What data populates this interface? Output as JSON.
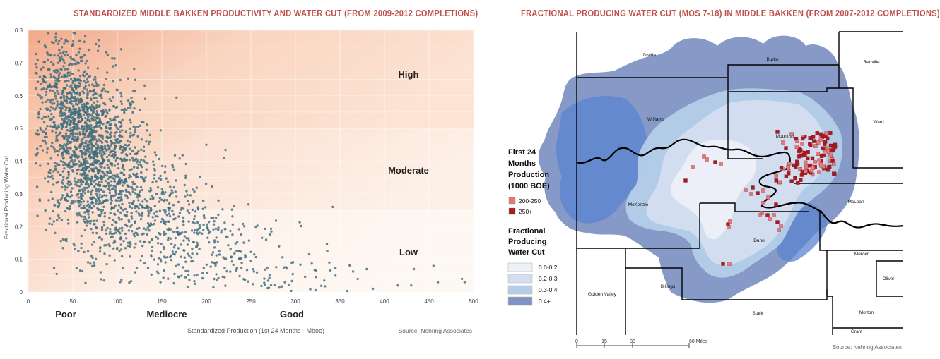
{
  "left_title": "STANDARDIZED MIDDLE BAKKEN PRODUCTIVITY AND WATER CUT (FROM 2009-2012 COMPLETIONS)",
  "right_title": "FRACTIONAL PRODUCING WATER CUT (MOS 7-18) IN MIDDLE BAKKEN (FROM 2007-2012 COMPLETIONS)",
  "chart_data": [
    {
      "type": "scatter",
      "title": "STANDARDIZED MIDDLE BAKKEN PRODUCTIVITY AND WATER CUT (FROM 2009-2012 COMPLETIONS)",
      "xlabel": "Standardized Production (1st 24 Months - Mboe)",
      "ylabel": "Fractional Producing Water Cut",
      "xlim": [
        0,
        500
      ],
      "ylim": [
        0,
        0.8
      ],
      "xticks": [
        "0",
        "50",
        "100",
        "150",
        "200",
        "250",
        "300",
        "350",
        "400",
        "450",
        "500"
      ],
      "yticks": [
        "0",
        "0.1",
        "0.2",
        "0.3",
        "0.4",
        "0.5",
        "0.6",
        "0.7",
        "0.8"
      ],
      "grid": true,
      "zones": [
        {
          "label": "High",
          "y_range": [
            0.5,
            0.8
          ]
        },
        {
          "label": "Moderate",
          "y_range": [
            0.25,
            0.5
          ]
        },
        {
          "label": "Low",
          "y_range": [
            0,
            0.25
          ]
        }
      ],
      "productivity_labels": [
        "Poor",
        "Mediocre",
        "Good"
      ],
      "source": "Source:  Nehring Associates",
      "series": [
        {
          "color": "#3d6e7f",
          "clusters": [
            {
              "x_center": 70,
              "y_center": 0.42,
              "x_spread": 30,
              "y_spread": 0.14,
              "count": 1500
            },
            {
              "x_center": 40,
              "y_center": 0.6,
              "x_spread": 18,
              "y_spread": 0.1,
              "count": 320
            },
            {
              "x_center": 150,
              "y_center": 0.22,
              "x_spread": 45,
              "y_spread": 0.11,
              "count": 480
            },
            {
              "x_center": 260,
              "y_center": 0.1,
              "x_spread": 70,
              "y_spread": 0.07,
              "count": 170
            }
          ],
          "points": [
            [
              487,
              0.04
            ],
            [
              490,
              0.03
            ],
            [
              455,
              0.08
            ],
            [
              460,
              0.03
            ],
            [
              433,
              0.07
            ],
            [
              430,
              0.02
            ],
            [
              415,
              0.02
            ],
            [
              387,
              0.01
            ],
            [
              380,
              0.07
            ],
            [
              342,
              0.26
            ],
            [
              220,
              0.41
            ],
            [
              200,
              0.45
            ],
            [
              338,
              0.09
            ],
            [
              345,
              0.05
            ],
            [
              370,
              0.04
            ]
          ]
        }
      ]
    },
    {
      "type": "map",
      "title": "FRACTIONAL PRODUCING WATER CUT (MOS 7-18) IN MIDDLE BAKKEN (FROM 2007-2012 COMPLETIONS)",
      "counties": [
        "Divide",
        "Burke",
        "Renville",
        "Williams",
        "Ward",
        "Mountrail",
        "McKenzie",
        "McLean",
        "Dunn",
        "Mercer",
        "Oliver",
        "Golden Valley",
        "Billings",
        "Stark",
        "Morton",
        "Grant"
      ],
      "legend_production_title": "First 24 Months Production (1000 BOE)",
      "legend_production": [
        {
          "label": "200-250",
          "color": "#e8777a"
        },
        {
          "label": "250+",
          "color": "#a51c22"
        }
      ],
      "legend_water_title": "Fractional Producing Water Cut",
      "legend_water": [
        {
          "label": "0.0-0.2",
          "color": "#eef1f8"
        },
        {
          "label": "0.2-0.3",
          "color": "#d4def0"
        },
        {
          "label": "0.3-0.4",
          "color": "#b4cde8"
        },
        {
          "label": "0.4+",
          "color": "#7f93c4"
        }
      ],
      "scale_ticks": [
        "0",
        "15",
        "30",
        "60 Miles"
      ],
      "source": "Source:  Nehring Associates"
    }
  ]
}
